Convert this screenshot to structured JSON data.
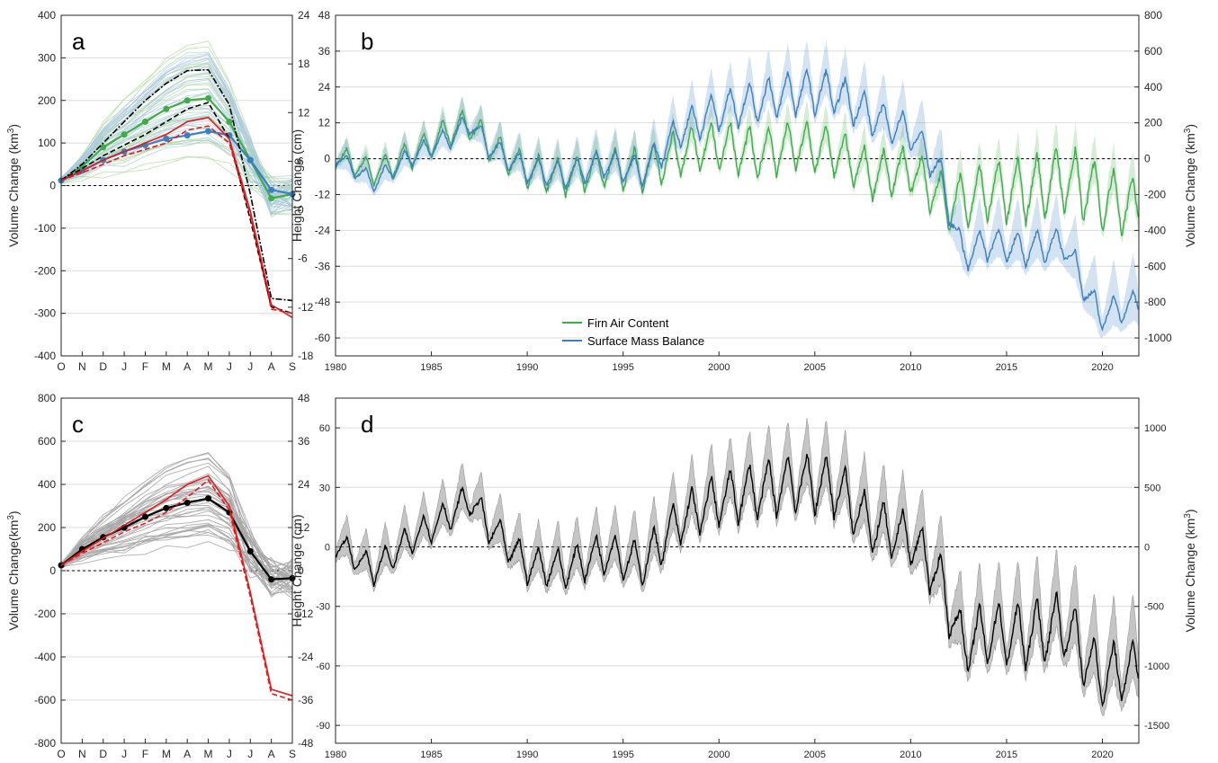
{
  "chart_data": [
    {
      "panel": "a",
      "type": "line",
      "panel_label": "a",
      "x": [
        "O",
        "N",
        "D",
        "J",
        "F",
        "M",
        "A",
        "M",
        "J",
        "J",
        "A",
        "S"
      ],
      "ylabel": "Volume Change (km",
      "ylabel_sup": "3",
      "ylabel_end": ")",
      "ylim": [
        -400,
        400
      ],
      "yticks": [
        -400,
        -300,
        -200,
        -100,
        0,
        100,
        200,
        300,
        400
      ],
      "y2lim": [
        -18,
        24
      ],
      "y2ticks": [
        -18,
        -12,
        -6,
        0,
        6,
        12,
        18,
        24
      ],
      "grid": true,
      "series": [
        {
          "role": "fac-mean",
          "color": "#3fab49",
          "values": [
            12,
            45,
            90,
            120,
            150,
            180,
            200,
            205,
            150,
            60,
            -30,
            -20
          ]
        },
        {
          "role": "smb-mean",
          "color": "#3a7fbf",
          "values": [
            12,
            35,
            60,
            80,
            95,
            110,
            118,
            128,
            118,
            60,
            -10,
            -20
          ]
        },
        {
          "role": "black-dashdot",
          "color": "#000000",
          "values": [
            12,
            50,
            100,
            150,
            200,
            240,
            270,
            272,
            190,
            -20,
            -265,
            -270
          ]
        },
        {
          "role": "black-dashed",
          "color": "#000000",
          "values": [
            12,
            40,
            70,
            95,
            120,
            150,
            180,
            195,
            110,
            -80,
            -285,
            -300
          ]
        },
        {
          "role": "red-solid",
          "color": "#e31a1c",
          "values": [
            12,
            35,
            60,
            80,
            100,
            120,
            150,
            160,
            110,
            -60,
            -280,
            -310
          ]
        },
        {
          "role": "red-dashed",
          "color": "#e31a1c",
          "values": [
            12,
            30,
            50,
            70,
            85,
            100,
            130,
            140,
            100,
            -70,
            -290,
            -300
          ]
        }
      ]
    },
    {
      "panel": "b",
      "type": "area",
      "panel_label": "b",
      "xlim": [
        1980,
        2021.9
      ],
      "xticks": [
        1980,
        1985,
        1990,
        1995,
        2000,
        2005,
        2010,
        2015,
        2020
      ],
      "ylabel": "Height Change (cm)",
      "ylim": [
        -66,
        48
      ],
      "yticks": [
        -60,
        -48,
        -36,
        -24,
        -12,
        0,
        12,
        24,
        36,
        48
      ],
      "y2label": "Volume Change (km",
      "y2label_sup": "3",
      "y2label_end": ")",
      "y2lim": [
        -1100,
        800
      ],
      "y2ticks": [
        -1000,
        -800,
        -600,
        -400,
        -200,
        0,
        200,
        400,
        600,
        800
      ],
      "grid": true,
      "legend": {
        "position": "bottom-center",
        "entries": [
          {
            "label": "Firn Air Content",
            "color": "#3fab49"
          },
          {
            "label": "Surface Mass Balance",
            "color": "#3a7fbf"
          }
        ]
      },
      "series": [
        {
          "name": "Firn Air Content",
          "color": "#3fab49",
          "annual_baseline": [
            [
              1980,
              0
            ],
            [
              1982,
              -6
            ],
            [
              1984,
              0
            ],
            [
              1986,
              8
            ],
            [
              1987,
              10
            ],
            [
              1988,
              3
            ],
            [
              1990,
              -6
            ],
            [
              1992,
              -8
            ],
            [
              1994,
              -5
            ],
            [
              1996,
              -6
            ],
            [
              1998,
              0
            ],
            [
              2000,
              2
            ],
            [
              2002,
              -1
            ],
            [
              2004,
              2
            ],
            [
              2006,
              0
            ],
            [
              2008,
              -8
            ],
            [
              2010,
              -6
            ],
            [
              2012,
              -18
            ],
            [
              2014,
              -14
            ],
            [
              2016,
              -14
            ],
            [
              2018,
              -10
            ],
            [
              2020,
              -16
            ],
            [
              2021.9,
              -20
            ]
          ],
          "seasonal_amplitude": [
            [
              1980,
              8
            ],
            [
              1987,
              11
            ],
            [
              1990,
              12
            ],
            [
              1995,
              14
            ],
            [
              2000,
              18
            ],
            [
              2005,
              17
            ],
            [
              2010,
              16
            ],
            [
              2015,
              22
            ],
            [
              2019,
              24
            ],
            [
              2021.9,
              22
            ]
          ],
          "band_halfwidth": 5
        },
        {
          "name": "Surface Mass Balance",
          "color": "#3a7fbf",
          "annual_baseline": [
            [
              1980,
              0
            ],
            [
              1982,
              -9
            ],
            [
              1984,
              0
            ],
            [
              1986,
              6
            ],
            [
              1987,
              11
            ],
            [
              1988,
              3
            ],
            [
              1990,
              -5
            ],
            [
              1992,
              -7
            ],
            [
              1994,
              -3
            ],
            [
              1996,
              -6
            ],
            [
              1998,
              8
            ],
            [
              2000,
              14
            ],
            [
              2002,
              17
            ],
            [
              2004,
              20
            ],
            [
              2006,
              20
            ],
            [
              2008,
              12
            ],
            [
              2010,
              7
            ],
            [
              2011.5,
              -6
            ],
            [
              2012.7,
              -34
            ],
            [
              2014,
              -30
            ],
            [
              2016,
              -32
            ],
            [
              2018,
              -30
            ],
            [
              2019.8,
              -54
            ],
            [
              2021.9,
              -50
            ]
          ],
          "seasonal_amplitude": [
            [
              1980,
              6
            ],
            [
              1988,
              8
            ],
            [
              1995,
              10
            ],
            [
              2000,
              14
            ],
            [
              2005,
              16
            ],
            [
              2010,
              12
            ],
            [
              2013,
              12
            ],
            [
              2020,
              11
            ],
            [
              2021.9,
              10
            ]
          ],
          "band_halfwidth": 7
        }
      ]
    },
    {
      "panel": "c",
      "type": "line",
      "panel_label": "c",
      "x": [
        "O",
        "N",
        "D",
        "J",
        "F",
        "M",
        "A",
        "M",
        "J",
        "J",
        "A",
        "S"
      ],
      "ylabel": "Volume Change(km",
      "ylabel_sup": "3",
      "ylabel_end": ")",
      "ylim": [
        -800,
        800
      ],
      "yticks": [
        -800,
        -600,
        -400,
        -200,
        0,
        200,
        400,
        600,
        800
      ],
      "y2lim": [
        -48,
        48
      ],
      "y2ticks": [
        -48,
        -36,
        -24,
        -12,
        0,
        12,
        24,
        36,
        48
      ],
      "grid": true,
      "series": [
        {
          "role": "black-mean",
          "color": "#000000",
          "values": [
            25,
            100,
            155,
            200,
            250,
            290,
            315,
            335,
            270,
            90,
            -40,
            -35
          ]
        },
        {
          "role": "red-solid",
          "color": "#e31a1c",
          "values": [
            25,
            90,
            150,
            210,
            270,
            330,
            400,
            440,
            300,
            -100,
            -550,
            -580
          ]
        },
        {
          "role": "red-dashed",
          "color": "#e31a1c",
          "values": [
            25,
            80,
            130,
            180,
            220,
            270,
            340,
            420,
            280,
            -120,
            -570,
            -600
          ]
        }
      ]
    },
    {
      "panel": "d",
      "type": "area",
      "panel_label": "d",
      "xlim": [
        1980,
        2021.9
      ],
      "xticks": [
        1980,
        1985,
        1990,
        1995,
        2000,
        2005,
        2010,
        2015,
        2020
      ],
      "ylabel": "Height Change (cm)",
      "ylim": [
        -99,
        75
      ],
      "yticks": [
        -90,
        -60,
        -30,
        0,
        30,
        60
      ],
      "y2label": "Volume Change (km",
      "y2label_sup": "3",
      "y2label_end": ")",
      "y2lim": [
        -1650,
        1250
      ],
      "y2ticks": [
        -1500,
        -1000,
        -500,
        0,
        500,
        1000
      ],
      "grid": true,
      "series": [
        {
          "name": "total",
          "color": "#000000",
          "annual_baseline": [
            [
              1980,
              0
            ],
            [
              1982,
              -14
            ],
            [
              1984,
              2
            ],
            [
              1986,
              14
            ],
            [
              1987,
              22
            ],
            [
              1988,
              8
            ],
            [
              1990,
              -12
            ],
            [
              1992,
              -14
            ],
            [
              1994,
              -6
            ],
            [
              1996,
              -12
            ],
            [
              1998,
              10
            ],
            [
              2000,
              20
            ],
            [
              2002,
              24
            ],
            [
              2004,
              28
            ],
            [
              2006,
              26
            ],
            [
              2008,
              6
            ],
            [
              2010,
              0
            ],
            [
              2011.5,
              -20
            ],
            [
              2012.7,
              -54
            ],
            [
              2014,
              -48
            ],
            [
              2016,
              -50
            ],
            [
              2018,
              -44
            ],
            [
              2019.8,
              -70
            ],
            [
              2021.9,
              -66
            ]
          ],
          "seasonal_amplitude": [
            [
              1980,
              14
            ],
            [
              1988,
              18
            ],
            [
              1995,
              22
            ],
            [
              2000,
              28
            ],
            [
              2005,
              32
            ],
            [
              2010,
              28
            ],
            [
              2015,
              34
            ],
            [
              2019,
              36
            ],
            [
              2021.9,
              30
            ]
          ],
          "band_halfwidth": 13
        }
      ]
    }
  ]
}
